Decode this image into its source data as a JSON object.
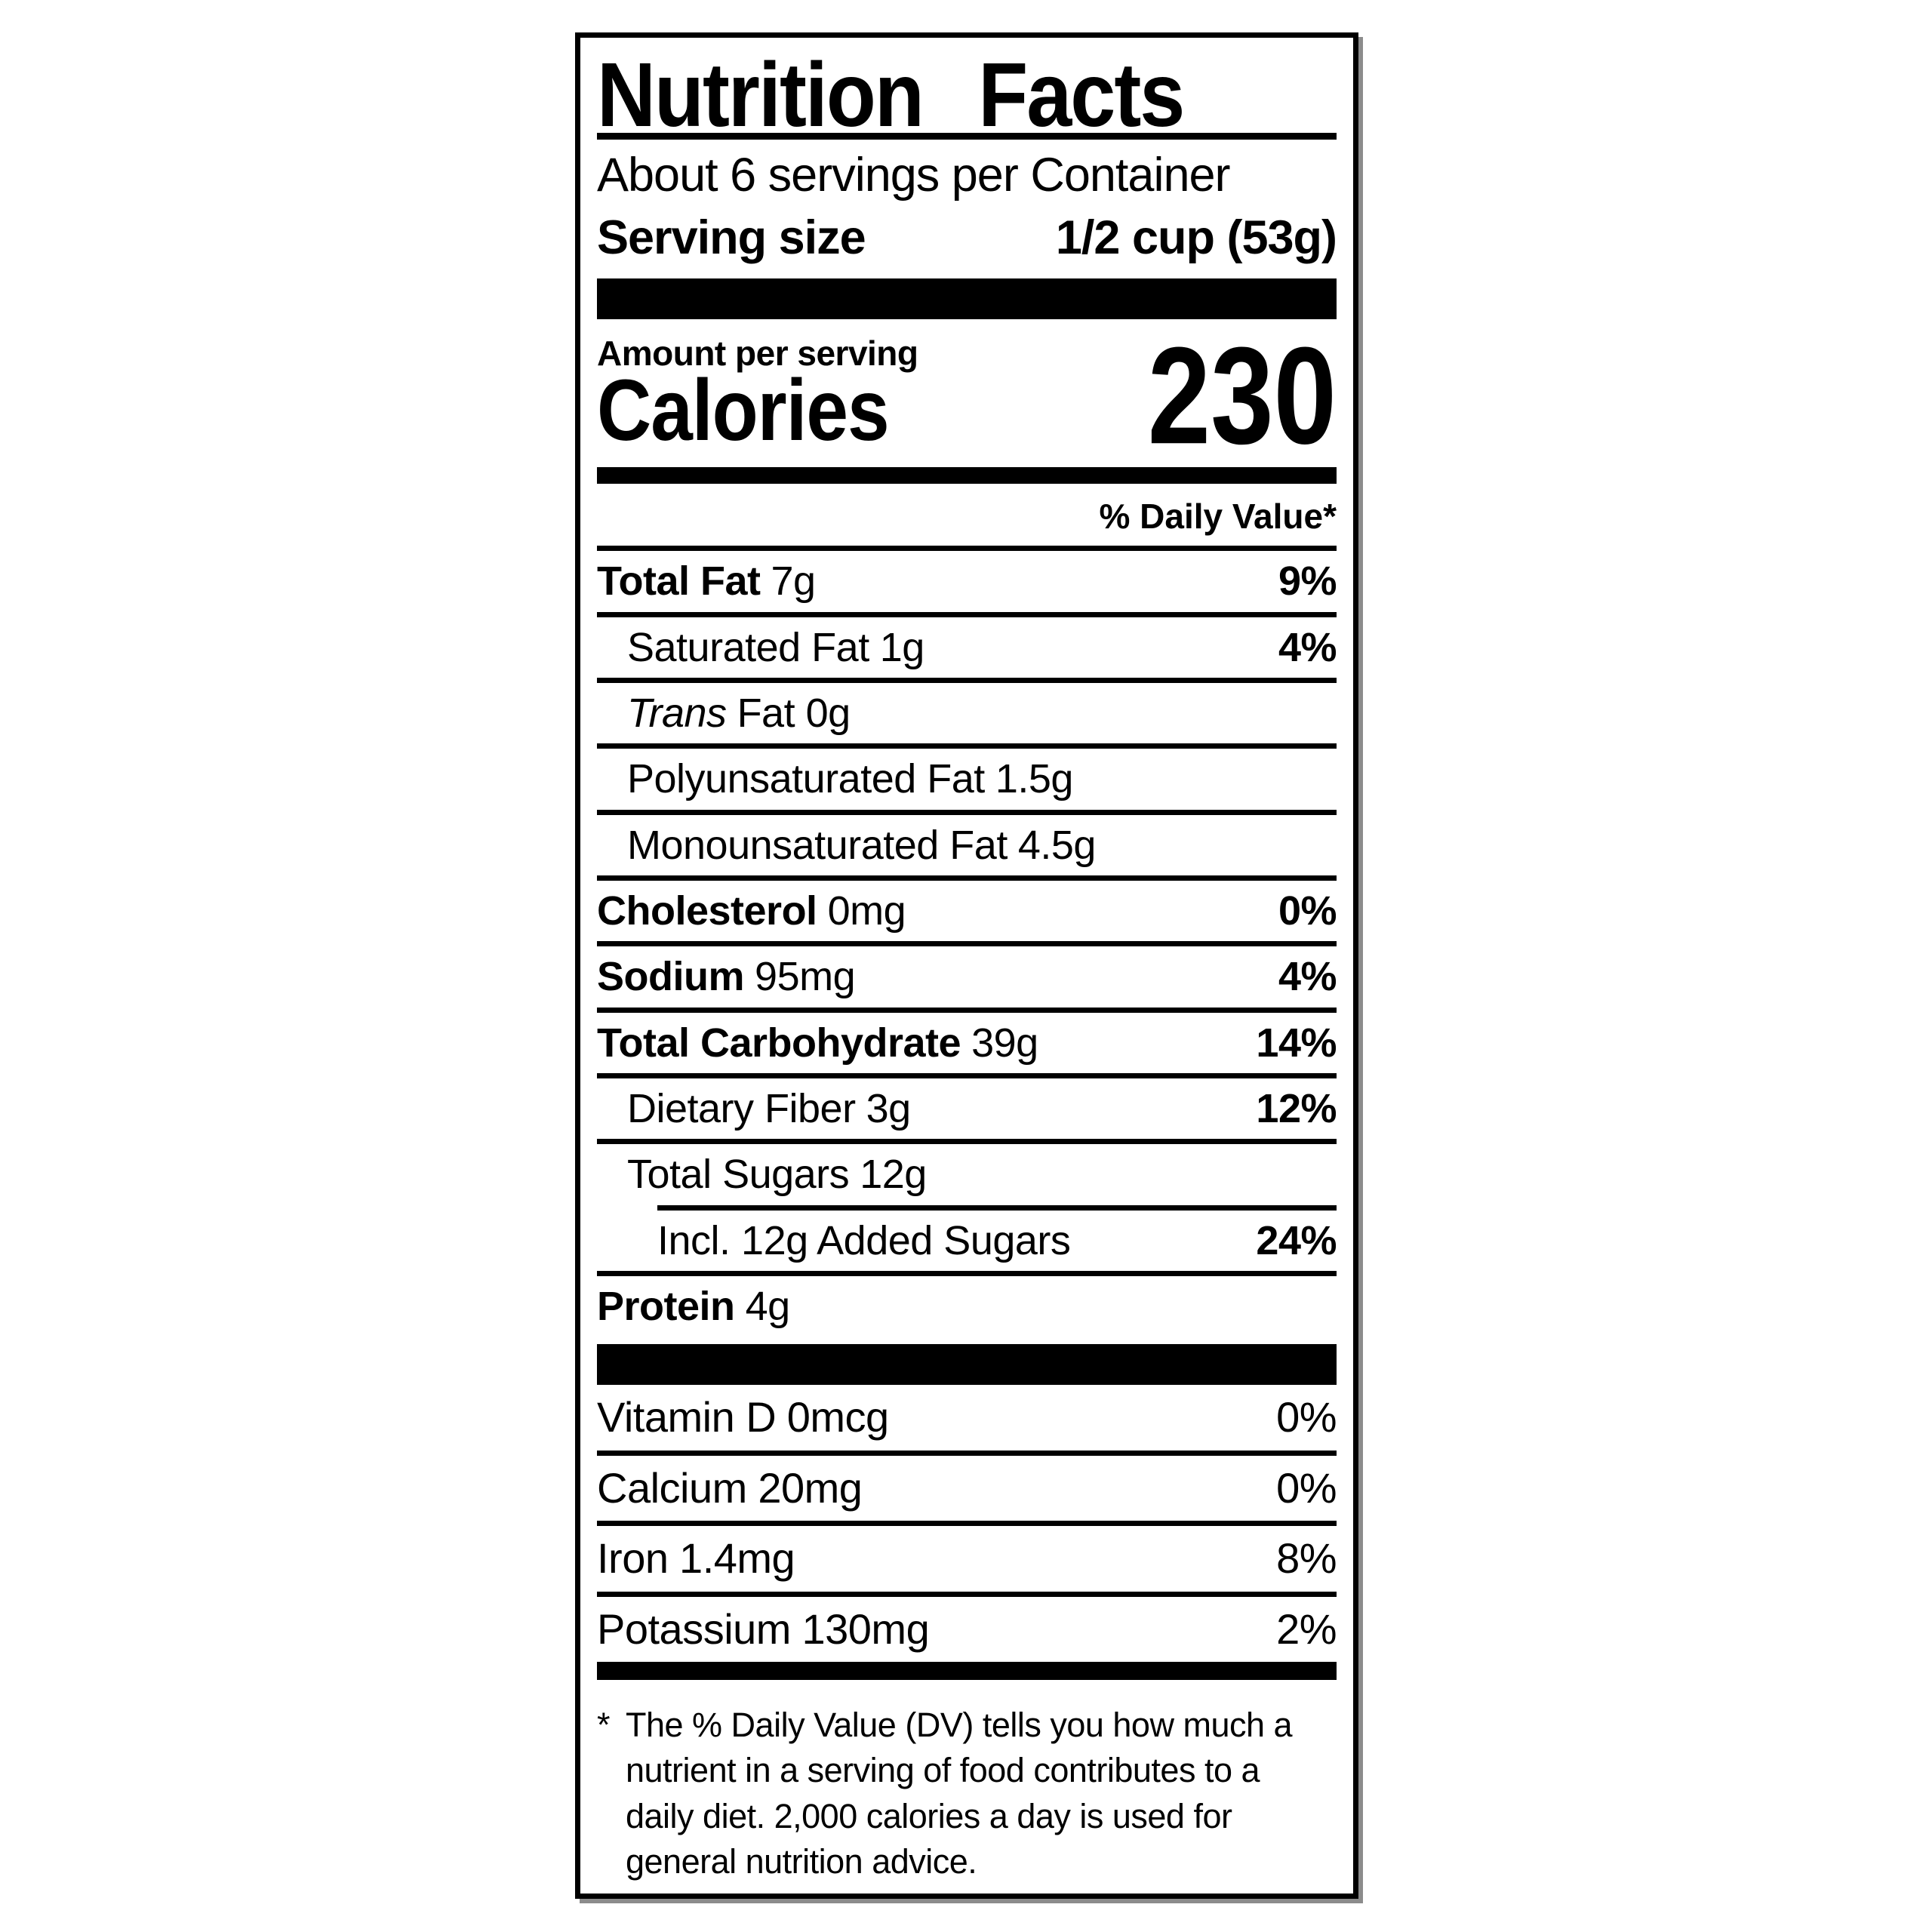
{
  "colors": {
    "text": "#000000",
    "background": "#ffffff"
  },
  "label": {
    "title": "Nutrition Facts",
    "servings_line": "About 6 servings per Container",
    "serving_size": {
      "label": "Serving size",
      "value": "1/2 cup (53g)"
    },
    "calories": {
      "eyebrow": "Amount per serving",
      "label": "Calories",
      "value": "230"
    },
    "daily_value_header": "% Daily Value*",
    "rows": [
      {
        "name": "Total Fat",
        "amount": "7g",
        "dv": "9%"
      },
      {
        "name": "Saturated Fat",
        "amount": "1g",
        "dv": "4%"
      },
      {
        "name": "Trans",
        "amount": "Fat 0g",
        "dv": ""
      },
      {
        "name": "Polyunsaturated Fat",
        "amount": "1.5g",
        "dv": ""
      },
      {
        "name": "Monounsaturated Fat",
        "amount": "4.5g",
        "dv": ""
      },
      {
        "name": "Cholesterol",
        "amount": "0mg",
        "dv": "0%"
      },
      {
        "name": "Sodium",
        "amount": "95mg",
        "dv": "4%"
      },
      {
        "name": "Total Carbohydrate",
        "amount": "39g",
        "dv": "14%"
      },
      {
        "name": "Dietary Fiber",
        "amount": "3g",
        "dv": "12%"
      },
      {
        "name": "Total Sugars",
        "amount": "12g",
        "dv": ""
      },
      {
        "name": "Incl. 12g Added Sugars",
        "amount": "",
        "dv": "24%"
      },
      {
        "name": "Protein",
        "amount": "4g",
        "dv": ""
      }
    ],
    "micronutrients": [
      {
        "name": "Vitamin D",
        "amount": "0mcg",
        "dv": "0%"
      },
      {
        "name": "Calcium",
        "amount": "20mg",
        "dv": "0%"
      },
      {
        "name": "Iron",
        "amount": "1.4mg",
        "dv": "8%"
      },
      {
        "name": "Potassium",
        "amount": "130mg",
        "dv": "2%"
      }
    ],
    "footnote": {
      "marker": "*",
      "text": "The % Daily Value (DV) tells you how much a nutrient in a serving of food contributes to a daily diet. 2,000 calories a day is used for general nutrition advice."
    }
  }
}
